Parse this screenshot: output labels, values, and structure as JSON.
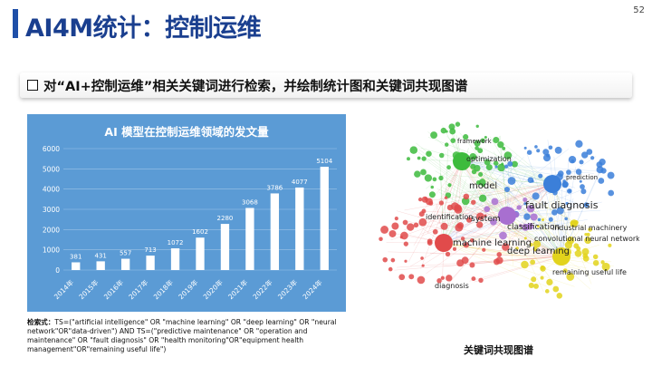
{
  "page_number": "52",
  "title": "AI4M统计：控制运维",
  "banner": {
    "text": "对“AI+控制运维”相关关键词进行检索，并绘制统计图和关键词共现图谱"
  },
  "chart_data": {
    "type": "bar",
    "title": "AI 模型在控制运维领域的发文量",
    "categories": [
      "2014年",
      "2015年",
      "2016年",
      "2017年",
      "2018年",
      "2019年",
      "2020年",
      "2021年",
      "2022年",
      "2023年",
      "2024年"
    ],
    "values": [
      381,
      431,
      557,
      713,
      1072,
      1602,
      2280,
      3068,
      3786,
      4077,
      5104
    ],
    "ylim": [
      0,
      6000
    ],
    "yticks": [
      0,
      1000,
      2000,
      3000,
      4000,
      5000,
      6000
    ],
    "grid": true,
    "bar_color": "#ffffff",
    "background": "#5b9bd5"
  },
  "note": {
    "label": "检索式：",
    "text": "TS=(\"artificial intelligence\" OR \"machine learning\" OR \"deep learning\" OR \"neural network\"OR\"data-driven\") AND TS=(\"predictive maintenance\" OR \"operation and maintenance\" OR \"fault diagnosis\" OR \"health monitoring\"OR\"equipment health management\"OR\"remaining useful life\")"
  },
  "network": {
    "caption": "关键词共现图谱",
    "labels": [
      "model",
      "fault diagnosis",
      "machine learning",
      "deep learning",
      "system",
      "classification",
      "convolutional neural network",
      "identification",
      "industrial machinery",
      "optimization",
      "prediction",
      "framework",
      "remaining useful life",
      "diagnosis"
    ],
    "colors": {
      "red": "#e14b4b",
      "green": "#3dbb3d",
      "blue": "#3b7fd9",
      "yellow": "#e2d31c",
      "purple": "#a86fd0"
    }
  }
}
